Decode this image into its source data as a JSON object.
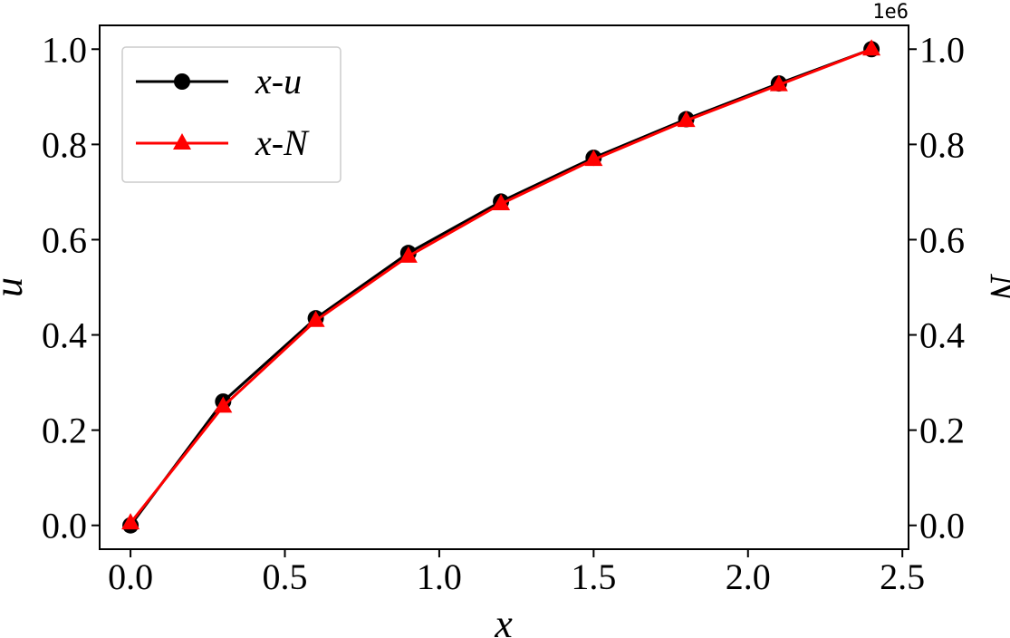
{
  "chart_data": {
    "type": "line",
    "title": "",
    "xlabel": "x",
    "ylabel": "u",
    "y2label": "N",
    "y2_offset_label": "1e6",
    "xlim": [
      -0.1,
      2.52
    ],
    "ylim": [
      -0.05,
      1.05
    ],
    "y2lim": [
      -0.05,
      1.05
    ],
    "x_ticks": [
      0.0,
      0.5,
      1.0,
      1.5,
      2.0,
      2.5
    ],
    "x_tick_labels": [
      "0.0",
      "0.5",
      "1.0",
      "1.5",
      "2.0",
      "2.5"
    ],
    "y_ticks": [
      0.0,
      0.2,
      0.4,
      0.6,
      0.8,
      1.0
    ],
    "y_tick_labels": [
      "0.0",
      "0.2",
      "0.4",
      "0.6",
      "0.8",
      "1.0"
    ],
    "y2_ticks": [
      0.0,
      0.2,
      0.4,
      0.6,
      0.8,
      1.0
    ],
    "y2_tick_labels": [
      "0.0",
      "0.2",
      "0.4",
      "0.6",
      "0.8",
      "1.0"
    ],
    "grid": false,
    "legend_position": "top-left",
    "x": [
      0.0,
      0.3,
      0.6,
      0.9,
      1.2,
      1.5,
      1.8,
      2.1,
      2.4
    ],
    "series": [
      {
        "name": "x-u",
        "axis": "left",
        "color": "#000000",
        "marker": "circle",
        "values": [
          0.0,
          0.26,
          0.435,
          0.572,
          0.68,
          0.772,
          0.853,
          0.928,
          1.0
        ]
      },
      {
        "name": "x-N",
        "axis": "right",
        "color": "#ff0000",
        "marker": "triangle",
        "values": [
          0.005,
          0.25,
          0.43,
          0.565,
          0.675,
          0.768,
          0.85,
          0.925,
          1.0
        ]
      }
    ]
  }
}
